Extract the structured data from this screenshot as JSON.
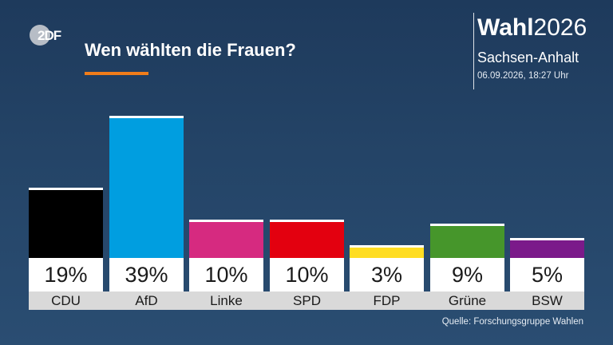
{
  "header": {
    "title": "Wen wählten die Frauen?",
    "brand_bold": "Wahl",
    "brand_year": "2026",
    "region": "Sachsen-Anhalt",
    "datetime": "06.09.2026, 18:27 Uhr",
    "logo": "zdf-logo"
  },
  "footer": {
    "source": "Quelle: Forschungsgruppe Wahlen"
  },
  "colors": {
    "accent": "#f07d1a",
    "CDU": "#000000",
    "AfD": "#009ee0",
    "Linke": "#d62a80",
    "SPD": "#e3000f",
    "FDP": "#ffdd22",
    "Grüne": "#46962b",
    "BSW": "#7b1a8a"
  },
  "chart_data": {
    "type": "bar",
    "title": "Wen wählten die Frauen?",
    "categories": [
      "CDU",
      "AfD",
      "Linke",
      "SPD",
      "FDP",
      "Grüne",
      "BSW"
    ],
    "values": [
      19,
      39,
      10,
      10,
      3,
      9,
      5
    ],
    "value_labels": [
      "19%",
      "39%",
      "10%",
      "10%",
      "3%",
      "9%",
      "5%"
    ],
    "colors": [
      "#000000",
      "#009ee0",
      "#d62a80",
      "#e3000f",
      "#ffdd22",
      "#46962b",
      "#7b1a8a"
    ],
    "unit": "%",
    "ylim": [
      0,
      39
    ],
    "grid": false,
    "legend": "none"
  }
}
